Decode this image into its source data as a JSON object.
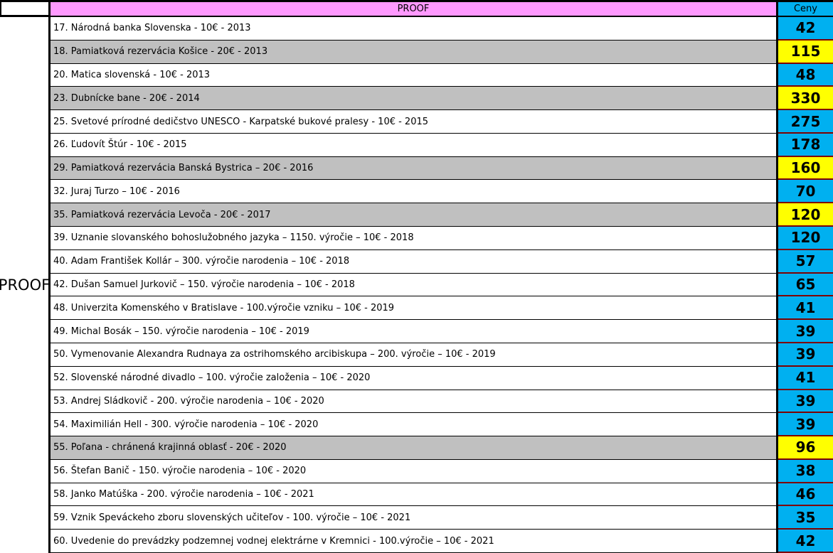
{
  "header": {
    "title": "PROOF",
    "price_col": "Ceny"
  },
  "side_label": "PROOF",
  "colors": {
    "header_bg": "#FF99FF",
    "price_bg_default": "#00B0F0",
    "price_bg_highlight": "#FFFF00",
    "row_bg_shaded": "#C0C0C0",
    "row_bg_default": "#FFFFFF",
    "price_border": "#7F0000",
    "grid_border": "#000000"
  },
  "rows": [
    {
      "label": "17. Národná banka Slovenska -  10€ -  2013",
      "price": "42",
      "shaded": false
    },
    {
      "label": "18. Pamiatková rezervácia Košice -  20€ -  2013",
      "price": "115",
      "shaded": true
    },
    {
      "label": "20. Matica slovenská -  10€ -  2013",
      "price": "48",
      "shaded": false
    },
    {
      "label": "23. Dubnícke bane -  20€ -  2014",
      "price": "330",
      "shaded": true
    },
    {
      "label": "25. Svetové prírodné dedičstvo UNESCO -  Karpatské bukové pralesy -  10€ -  2015",
      "price": "275",
      "shaded": false
    },
    {
      "label": "26. Ľudovít Štúr -  10€ -  2015",
      "price": "178",
      "shaded": false
    },
    {
      "label": "29. Pamiatková rezervácia Banská Bystrica –  20€ -  2016",
      "price": "160",
      "shaded": true
    },
    {
      "label": "32. Juraj Turzo –  10€ -  2016",
      "price": "70",
      "shaded": false
    },
    {
      "label": "35. Pamiatková rezervácia Levoča -  20€ -  2017",
      "price": "120",
      "shaded": true
    },
    {
      "label": "39. Uznanie slovanského bohoslužobného jazyka – 1150. výročie –  10€ -  2018",
      "price": "120",
      "shaded": false
    },
    {
      "label": "40. Adam František Kollár – 300. výročie narodenia –  10€ -  2018",
      "price": "57",
      "shaded": false
    },
    {
      "label": "42. Dušan Samuel Jurkovič – 150. výročie narodenia –  10€ -  2018",
      "price": "65",
      "shaded": false
    },
    {
      "label": "48. Univerzita Komenského v Bratislave -  100.výročie vzniku –  10€ -  2019",
      "price": "41",
      "shaded": false
    },
    {
      "label": "49. Michal Bosák – 150. výročie narodenia –  10€ -  2019",
      "price": "39",
      "shaded": false
    },
    {
      "label": "50. Vymenovanie Alexandra Rudnaya za ostrihomského arcibiskupa – 200. výročie –  10€ -  2019",
      "price": "39",
      "shaded": false
    },
    {
      "label": "52. Slovenské národné divadlo – 100. výročie založenia –  10€ -  2020",
      "price": "41",
      "shaded": false
    },
    {
      "label": "53. Andrej Sládkovič -  200. výročie narodenia –  10€ -  2020",
      "price": "39",
      "shaded": false
    },
    {
      "label": "54. Maximilián Hell -  300. výročie narodenia –  10€ -  2020",
      "price": "39",
      "shaded": false
    },
    {
      "label": "55. Poľana -  chránená krajinná oblasť -  20€ -  2020",
      "price": "96",
      "shaded": true
    },
    {
      "label": "56. Štefan Banič -  150. výročie narodenia –  10€ -  2020",
      "price": "38",
      "shaded": false
    },
    {
      "label": "58. Janko Matúška -  200. výročie narodenia –  10€ -  2021",
      "price": "46",
      "shaded": false
    },
    {
      "label": "59. Vznik Speváckeho zboru slovenských učiteľov -  100. výročie –  10€ -  2021",
      "price": "35",
      "shaded": false
    },
    {
      "label": "60. Uvedenie do prevádzky podzemnej vodnej elektrárne v Kremnici -  100.výročie –  10€ -  2021",
      "price": "42",
      "shaded": false
    }
  ]
}
